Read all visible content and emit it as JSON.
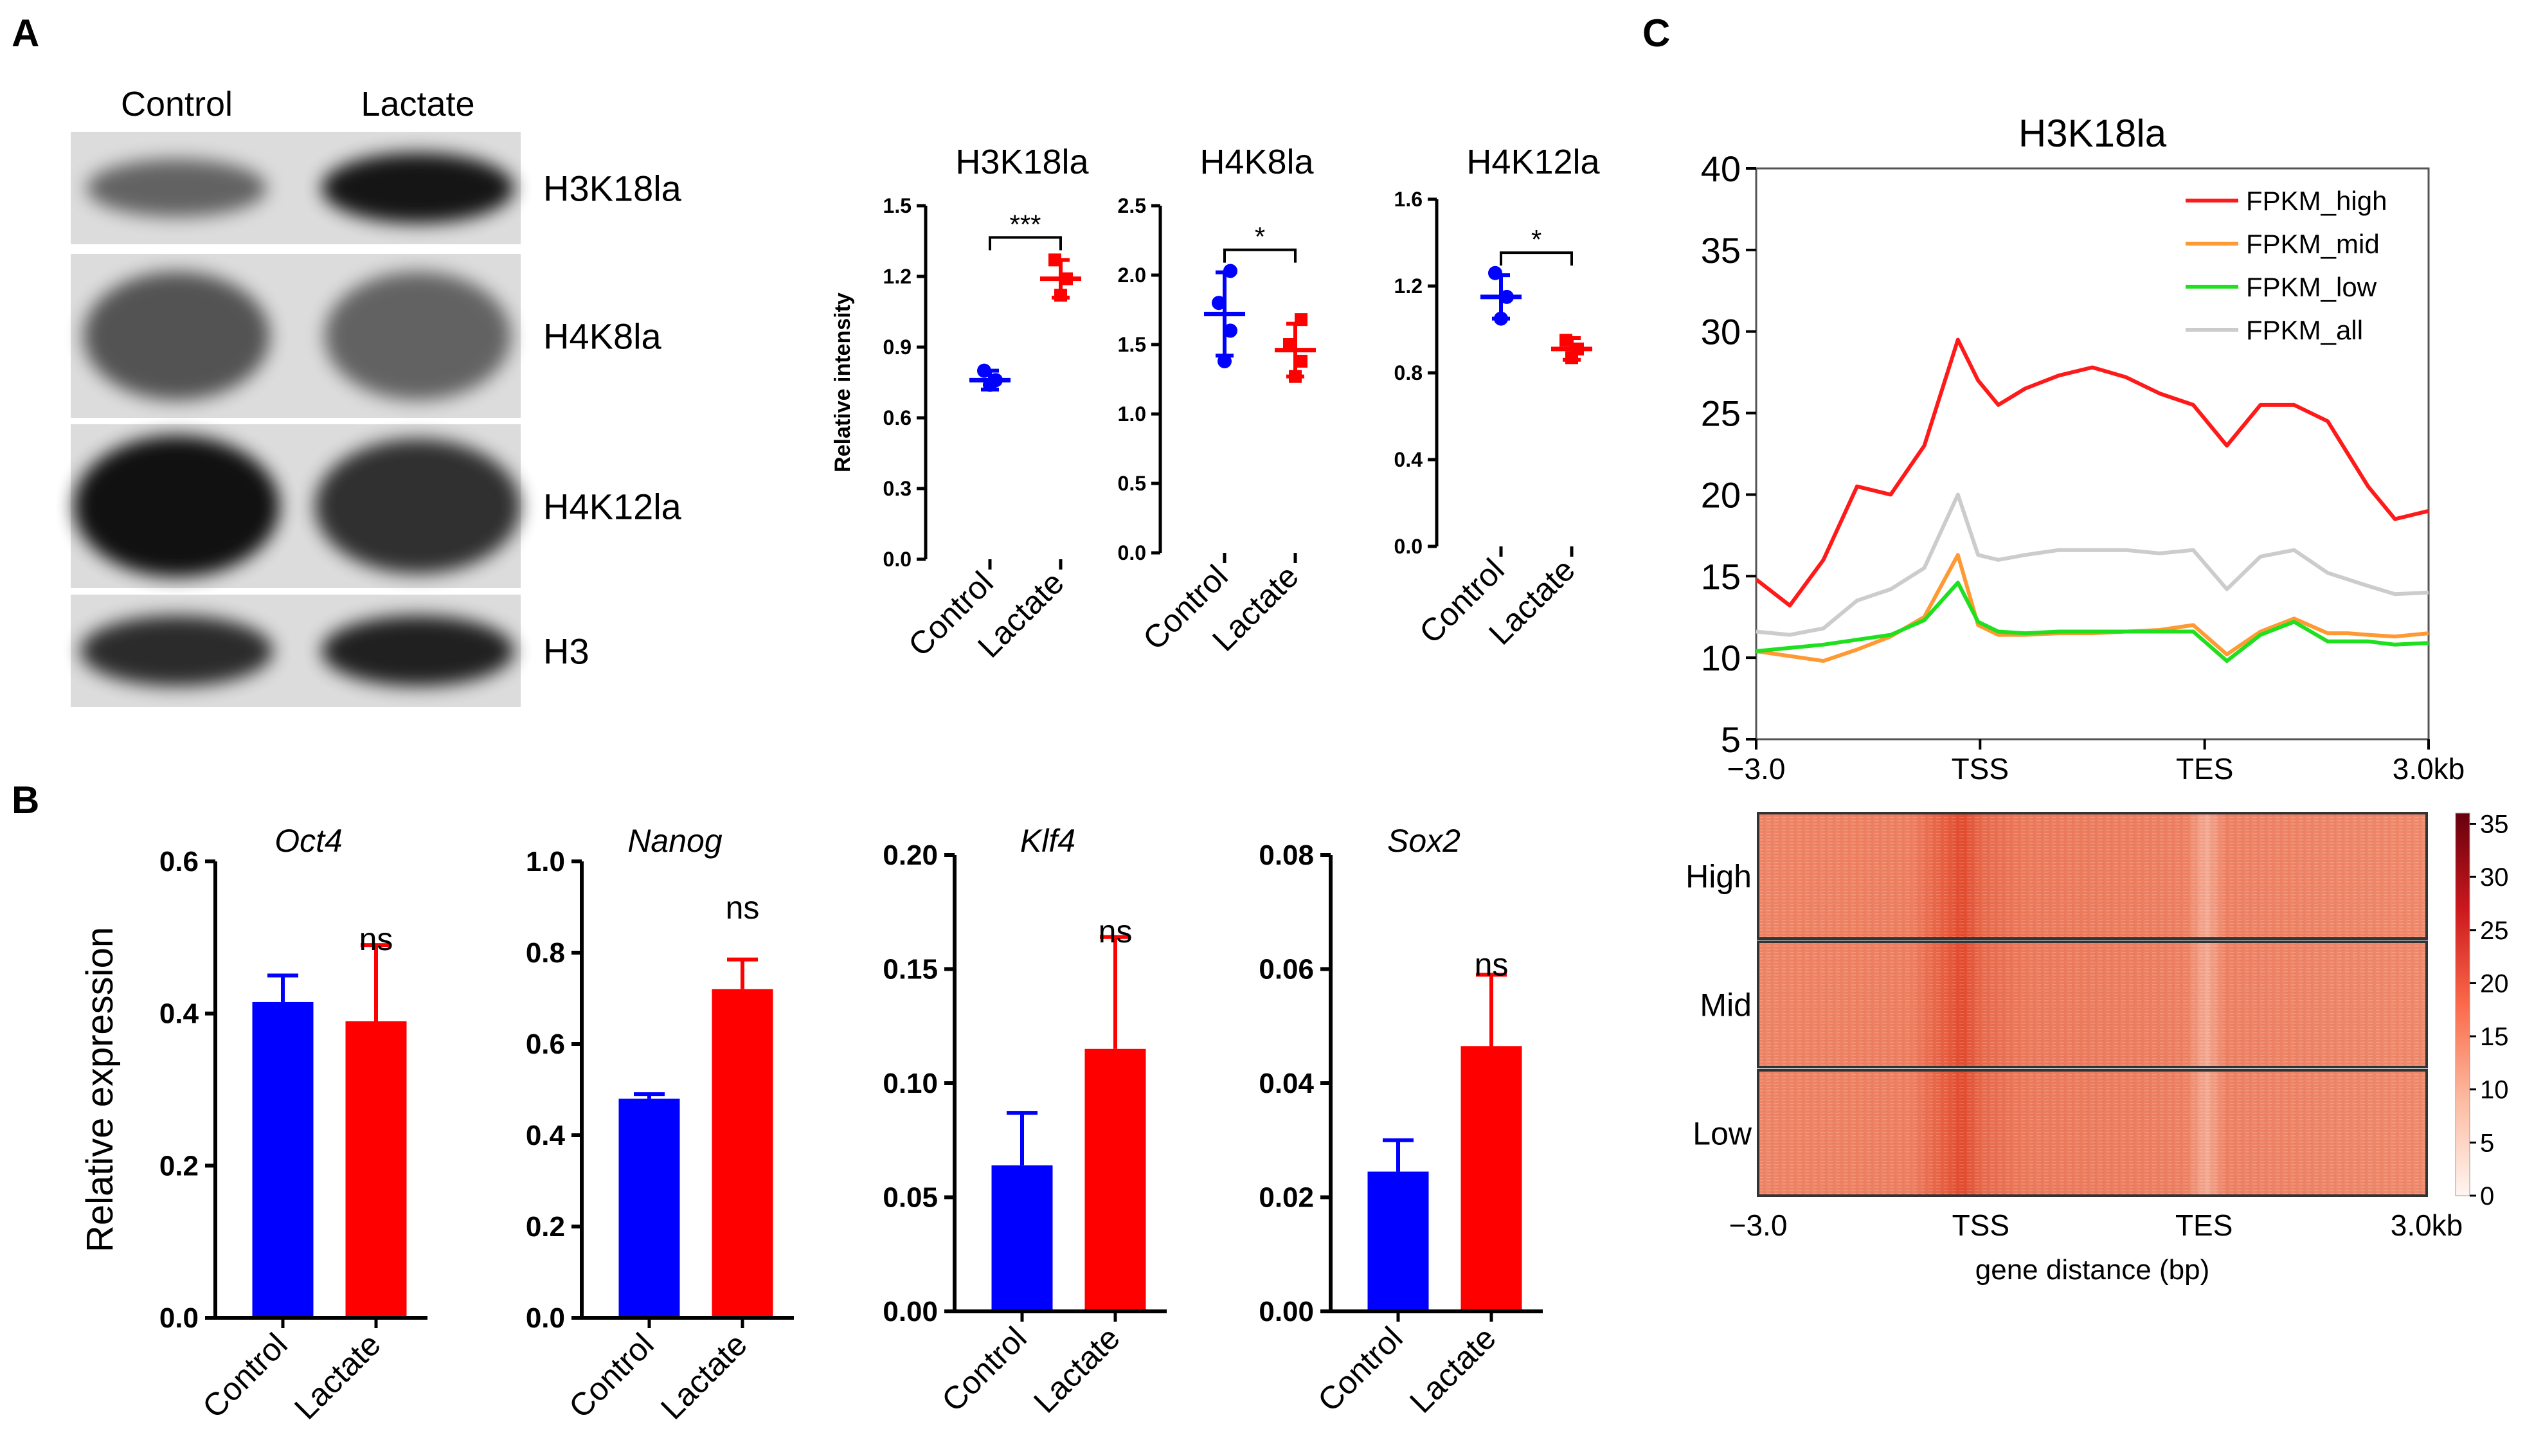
{
  "panel_labels": {
    "a": "A",
    "b": "B",
    "c": "C"
  },
  "colors": {
    "control": "#0000ff",
    "lactate": "#ff0000",
    "high": "#ff1a1a",
    "mid": "#ff9933",
    "low": "#1fe01f",
    "all": "#cccccc"
  },
  "western": {
    "columns": [
      "Control",
      "Lactate"
    ],
    "rows": [
      "H3K18la",
      "H4K8la",
      "H4K12la",
      "H3"
    ]
  },
  "chart_data": [
    {
      "type": "scatter",
      "panel": "A",
      "title": "H3K18la",
      "ylabel": "Relative  intensity",
      "categories": [
        "Control",
        "Lactate"
      ],
      "ylim": [
        0,
        1.5
      ],
      "yticks": [
        "0.0",
        "0.3",
        "0.6",
        "0.9",
        "1.2",
        "1.5"
      ],
      "sig": "***",
      "series": [
        {
          "name": "Control",
          "mean": 0.76,
          "sd": 0.04,
          "points": [
            0.74,
            0.76,
            0.8
          ]
        },
        {
          "name": "Lactate",
          "mean": 1.19,
          "sd": 0.08,
          "points": [
            1.12,
            1.19,
            1.27
          ]
        }
      ]
    },
    {
      "type": "scatter",
      "panel": "A",
      "title": "H4K8la",
      "ylabel": "",
      "categories": [
        "Control",
        "Lactate"
      ],
      "ylim": [
        0,
        2.5
      ],
      "yticks": [
        "0.0",
        "0.5",
        "1.0",
        "1.5",
        "2.0",
        "2.5"
      ],
      "sig": "*",
      "series": [
        {
          "name": "Control",
          "mean": 1.72,
          "sd": 0.3,
          "points": [
            1.38,
            1.6,
            1.8,
            2.03
          ]
        },
        {
          "name": "Lactate",
          "mean": 1.46,
          "sd": 0.19,
          "points": [
            1.27,
            1.38,
            1.5,
            1.68
          ]
        }
      ]
    },
    {
      "type": "scatter",
      "panel": "A",
      "title": "H4K12la",
      "ylabel": "",
      "categories": [
        "Control",
        "Lactate"
      ],
      "ylim": [
        0,
        1.6
      ],
      "yticks": [
        "0.0",
        "0.4",
        "0.8",
        "1.2",
        "1.6"
      ],
      "sig": "*",
      "series": [
        {
          "name": "Control",
          "mean": 1.15,
          "sd": 0.1,
          "points": [
            1.05,
            1.15,
            1.26
          ]
        },
        {
          "name": "Lactate",
          "mean": 0.91,
          "sd": 0.05,
          "points": [
            0.87,
            0.91,
            0.95
          ]
        }
      ]
    },
    {
      "type": "bar",
      "panel": "B",
      "title": "Oct4",
      "ylabel": "Relative expression",
      "categories": [
        "Control",
        "Lactate"
      ],
      "ylim": [
        0,
        0.6
      ],
      "yticks": [
        "0.0",
        "0.2",
        "0.4",
        "0.6"
      ],
      "sig": "ns",
      "values": [
        0.415,
        0.39
      ],
      "errors": [
        0.035,
        0.1
      ]
    },
    {
      "type": "bar",
      "panel": "B",
      "title": "Nanog",
      "ylabel": "",
      "categories": [
        "Control",
        "Lactate"
      ],
      "ylim": [
        0,
        1.0
      ],
      "yticks": [
        "0.0",
        "0.2",
        "0.4",
        "0.6",
        "0.8",
        "1.0"
      ],
      "sig": "ns",
      "values": [
        0.48,
        0.72
      ],
      "errors": [
        0.01,
        0.065
      ]
    },
    {
      "type": "bar",
      "panel": "B",
      "title": "Klf4",
      "ylabel": "",
      "categories": [
        "Control",
        "Lactate"
      ],
      "ylim": [
        0,
        0.2
      ],
      "yticks": [
        "0.00",
        "0.05",
        "0.10",
        "0.15",
        "0.20"
      ],
      "sig": "ns",
      "values": [
        0.064,
        0.115
      ],
      "errors": [
        0.023,
        0.049
      ]
    },
    {
      "type": "bar",
      "panel": "B",
      "title": "Sox2",
      "ylabel": "",
      "categories": [
        "Control",
        "Lactate"
      ],
      "ylim": [
        0,
        0.08
      ],
      "yticks": [
        "0.00",
        "0.02",
        "0.04",
        "0.06",
        "0.08"
      ],
      "sig": "ns",
      "values": [
        0.0245,
        0.0465
      ],
      "errors": [
        0.0055,
        0.0125
      ]
    },
    {
      "type": "line",
      "panel": "C",
      "title": "H3K18la",
      "ylim": [
        5,
        40
      ],
      "yticks": [
        "5",
        "10",
        "15",
        "20",
        "25",
        "30",
        "35",
        "40"
      ],
      "xticks": [
        "−3.0",
        "TSS",
        "TES",
        "3.0kb"
      ],
      "x": [
        0,
        5,
        10,
        15,
        20,
        25,
        30,
        33,
        36,
        40,
        45,
        50,
        55,
        60,
        65,
        70,
        75,
        80,
        85,
        88,
        91,
        95,
        100
      ],
      "series": [
        {
          "name": "FPKM_high",
          "values": [
            14.8,
            13.2,
            16,
            20.5,
            20,
            23,
            29.5,
            27,
            25.5,
            26.5,
            27.3,
            27.8,
            27.2,
            26.2,
            25.5,
            23,
            25.5,
            25.5,
            24.5,
            22.5,
            20.5,
            18.5,
            19
          ]
        },
        {
          "name": "FPKM_mid",
          "values": [
            10.4,
            10.1,
            9.8,
            10.5,
            11.3,
            12.5,
            16.3,
            12,
            11.4,
            11.4,
            11.5,
            11.5,
            11.6,
            11.7,
            12,
            10.2,
            11.6,
            12.4,
            11.5,
            11.5,
            11.4,
            11.3,
            11.5
          ]
        },
        {
          "name": "FPKM_low",
          "values": [
            10.4,
            10.6,
            10.8,
            11.1,
            11.4,
            12.3,
            14.6,
            12.2,
            11.6,
            11.5,
            11.6,
            11.6,
            11.6,
            11.6,
            11.6,
            9.8,
            11.4,
            12.2,
            11,
            11,
            11,
            10.8,
            10.9
          ]
        },
        {
          "name": "FPKM_all",
          "values": [
            11.6,
            11.4,
            11.8,
            13.5,
            14.2,
            15.5,
            20,
            16.3,
            16,
            16.3,
            16.6,
            16.6,
            16.6,
            16.4,
            16.6,
            14.2,
            16.2,
            16.6,
            15.2,
            14.8,
            14.4,
            13.9,
            14
          ]
        }
      ]
    },
    {
      "type": "heatmap",
      "panel": "C",
      "groups": [
        "High",
        "Mid",
        "Low"
      ],
      "xticks": [
        "−3.0",
        "TSS",
        "TES",
        "3.0kb"
      ],
      "xlabel": "gene distance (bp)",
      "colorbar_range": [
        0,
        36
      ],
      "colorbar_ticks": [
        "35",
        "30",
        "25",
        "20",
        "15",
        "10",
        "5",
        "0"
      ]
    }
  ]
}
